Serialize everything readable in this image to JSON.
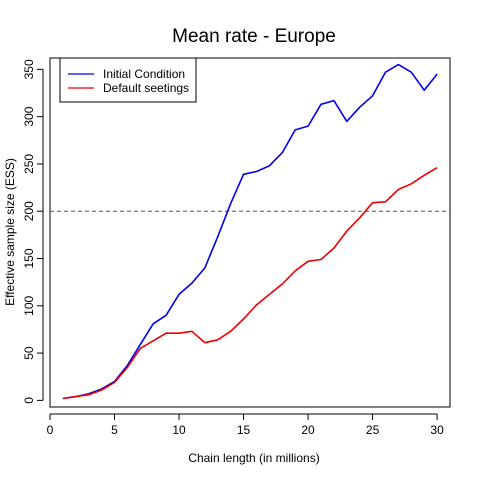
{
  "chart_data": {
    "type": "line",
    "title": "Mean rate - Europe",
    "xlabel": "Chain length (in millions)",
    "ylabel": "Effective sample size (ESS)",
    "xlim": [
      0,
      31
    ],
    "ylim": [
      -7,
      362
    ],
    "x_ticks": [
      0,
      5,
      10,
      15,
      20,
      25,
      30
    ],
    "y_ticks": [
      0,
      50,
      100,
      150,
      200,
      250,
      300,
      350
    ],
    "reference_line": {
      "y": 200,
      "style": "dashed",
      "color": "#555555"
    },
    "legend_position": "top-left",
    "grid": false,
    "x": [
      1,
      2,
      3,
      4,
      5,
      6,
      7,
      8,
      9,
      10,
      11,
      12,
      13,
      14,
      15,
      16,
      17,
      18,
      19,
      20,
      21,
      22,
      23,
      24,
      25,
      26,
      27,
      28,
      29,
      30
    ],
    "series": [
      {
        "name": "Initial Condition",
        "color": "#0000ee",
        "values": [
          2,
          4,
          7,
          12,
          20,
          37,
          59,
          81,
          90,
          112,
          124,
          140,
          173,
          208,
          239,
          242,
          248,
          262,
          286,
          290,
          313,
          317,
          295,
          310,
          322,
          347,
          355,
          347,
          328,
          345
        ]
      },
      {
        "name": "Default seetings",
        "color": "#ee0000",
        "values": [
          2,
          4,
          6,
          11,
          19,
          35,
          55,
          63,
          71,
          71,
          73,
          61,
          64,
          73,
          86,
          101,
          112,
          123,
          137,
          147,
          149,
          161,
          179,
          193,
          209,
          210,
          223,
          229,
          238,
          246
        ]
      }
    ]
  }
}
